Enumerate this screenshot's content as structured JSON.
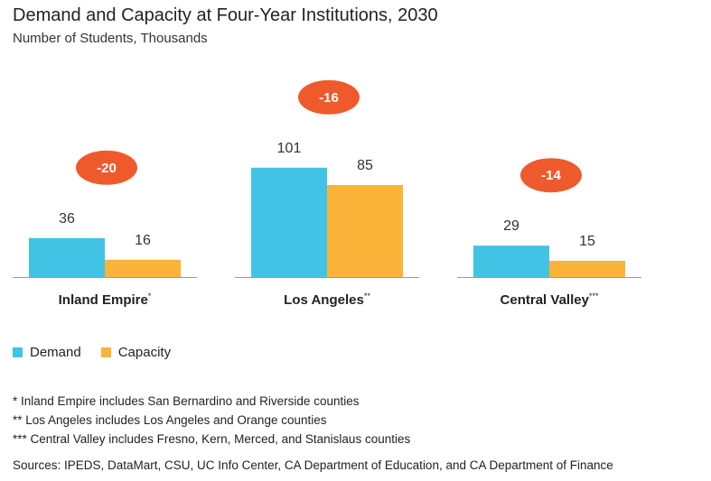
{
  "chart_data": {
    "type": "bar",
    "title": "Demand and Capacity at Four-Year Institutions, 2030",
    "subtitle": "Number of Students, Thousands",
    "categories": [
      "Inland Empire",
      "Los Angeles",
      "Central Valley"
    ],
    "category_marks": [
      "*",
      "**",
      "***"
    ],
    "series": [
      {
        "name": "Demand",
        "values": [
          36,
          101,
          29
        ],
        "color": "#41c3e6"
      },
      {
        "name": "Capacity",
        "values": [
          16,
          85,
          15
        ],
        "color": "#fbb33a"
      }
    ],
    "gaps": [
      "-20",
      "-16",
      "-14"
    ],
    "gap_color": "#ef5a2d",
    "legend_position": "bottom-left",
    "grid": false
  },
  "notes": [
    "* Inland Empire includes San Bernardino and Riverside counties",
    "** Los Angeles includes Los Angeles and Orange counties",
    "*** Central Valley includes Fresno, Kern, Merced, and Stanislaus counties"
  ],
  "source": "Sources: IPEDS, DataMart, CSU, UC Info Center, CA Department of Education, and CA Department of Finance"
}
